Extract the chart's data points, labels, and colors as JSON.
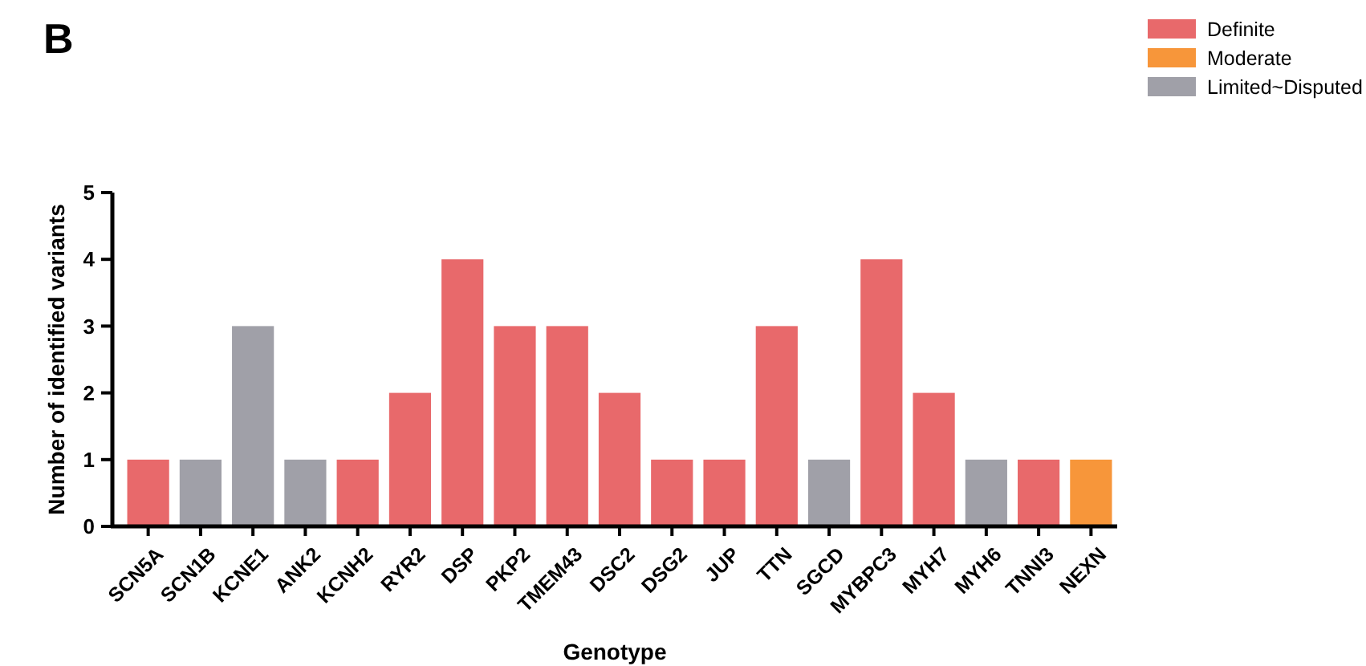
{
  "chart_data": {
    "type": "bar",
    "title": "B",
    "xlabel": "Genotype",
    "ylabel": "Number of identified variants",
    "categories": [
      "SCN5A",
      "SCN1B",
      "KCNE1",
      "ANK2",
      "KCNH2",
      "RYR2",
      "DSP",
      "PKP2",
      "TMEM43",
      "DSC2",
      "DSG2",
      "JUP",
      "TTN",
      "SGCD",
      "MYBPC3",
      "MYH7",
      "MYH6",
      "TNNI3",
      "NEXN"
    ],
    "series": [
      {
        "name": "Definite",
        "color": "#e8696b",
        "values": [
          1,
          null,
          null,
          null,
          1,
          2,
          4,
          3,
          3,
          2,
          1,
          1,
          3,
          null,
          4,
          2,
          null,
          1,
          null
        ]
      },
      {
        "name": "Moderate",
        "color": "#f7963a",
        "values": [
          null,
          null,
          null,
          null,
          null,
          null,
          null,
          null,
          null,
          null,
          null,
          null,
          null,
          null,
          null,
          null,
          null,
          null,
          1
        ]
      },
      {
        "name": "Limited~Disputed",
        "color": "#a0a0a8",
        "values": [
          null,
          1,
          3,
          1,
          null,
          null,
          null,
          null,
          null,
          null,
          null,
          null,
          null,
          1,
          null,
          null,
          1,
          null,
          null
        ]
      }
    ],
    "ylim": [
      0,
      5
    ],
    "yticks": [
      0,
      1,
      2,
      3,
      4,
      5
    ],
    "grid": false,
    "legend": "top right"
  }
}
